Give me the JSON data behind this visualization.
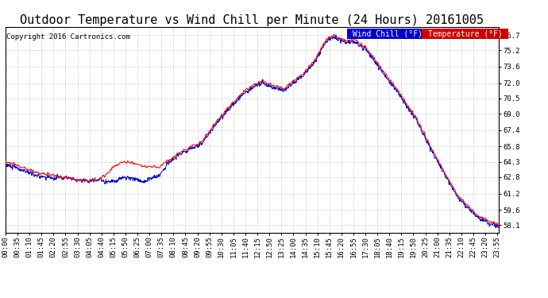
{
  "title": "Outdoor Temperature vs Wind Chill per Minute (24 Hours) 20161005",
  "copyright": "Copyright 2016 Cartronics.com",
  "y_ticks": [
    58.1,
    59.6,
    61.2,
    62.8,
    64.3,
    65.8,
    67.4,
    69.0,
    70.5,
    72.0,
    73.6,
    75.2,
    76.7
  ],
  "ylim": [
    57.4,
    77.5
  ],
  "legend_wind_chill": "Wind Chill (°F)",
  "legend_temperature": "Temperature (°F)",
  "wind_chill_color": "#0000cc",
  "temperature_color": "#ff0000",
  "legend_wind_bg": "#0000cc",
  "legend_temp_bg": "#cc0000",
  "background_color": "#ffffff",
  "grid_color": "#aaaaaa",
  "title_fontsize": 11,
  "copyright_fontsize": 6.5,
  "tick_fontsize": 6.5,
  "legend_fontsize": 7
}
